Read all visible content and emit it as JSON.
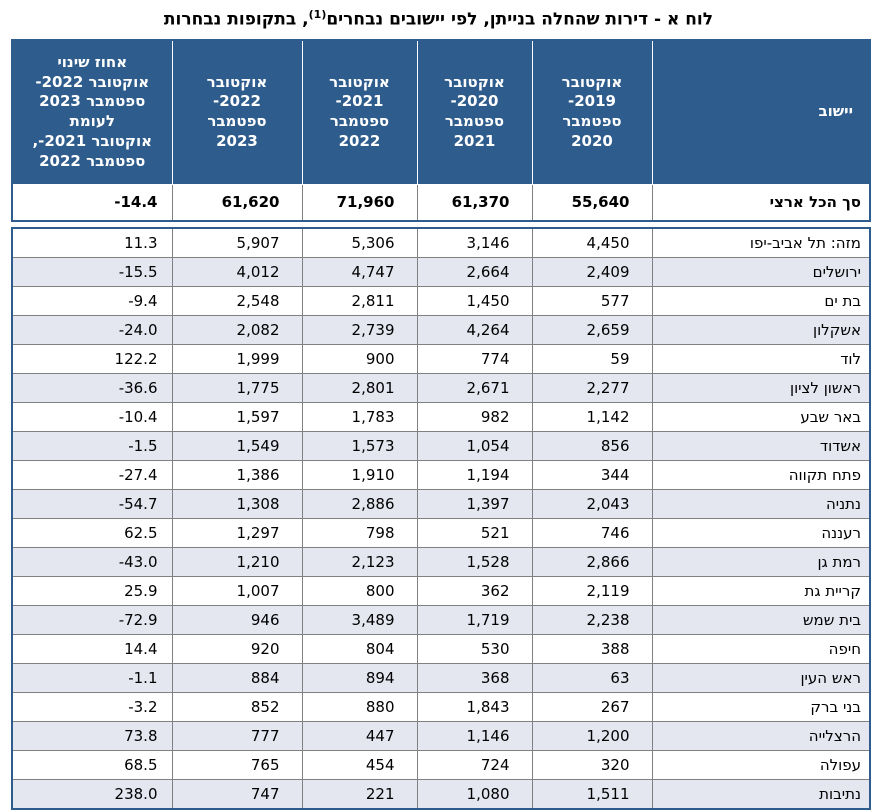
{
  "title": {
    "pre": "לוח א - דירות שהחלה בנייתן, לפי יישובים נבחרים",
    "sup": "(1)",
    "post": ", בתקופות נבחרות"
  },
  "table": {
    "headers": {
      "locality": "יישוב",
      "periods": [
        "אוקטובר\n2019-\nספטמבר\n2020",
        "אוקטובר\n2020-\nספטמבר\n2021",
        "אוקטובר\n2021-\nספטמבר\n2022",
        "אוקטובר\n2022-\nספטמבר\n2023"
      ],
      "change": "אחוז שינוי\nאוקטובר 2022-\nספטמבר 2023\nלעומת\nאוקטובר 2021-,\nספטמבר 2022"
    },
    "total": {
      "name": "סך הכל ארצי",
      "values": [
        "55,640",
        "61,370",
        "71,960",
        "61,620"
      ],
      "change": "-14.4"
    },
    "rows": [
      {
        "name": "מזה: תל אביב-יפו",
        "values": [
          "4,450",
          "3,146",
          "5,306",
          "5,907"
        ],
        "change": "11.3"
      },
      {
        "name": "ירושלים",
        "values": [
          "2,409",
          "2,664",
          "4,747",
          "4,012"
        ],
        "change": "-15.5"
      },
      {
        "name": "בת ים",
        "values": [
          "577",
          "1,450",
          "2,811",
          "2,548"
        ],
        "change": "-9.4"
      },
      {
        "name": "אשקלון",
        "values": [
          "2,659",
          "4,264",
          "2,739",
          "2,082"
        ],
        "change": "-24.0"
      },
      {
        "name": "לוד",
        "values": [
          "59",
          "774",
          "900",
          "1,999"
        ],
        "change": "122.2"
      },
      {
        "name": "ראשון לציון",
        "values": [
          "2,277",
          "2,671",
          "2,801",
          "1,775"
        ],
        "change": "-36.6"
      },
      {
        "name": "באר שבע",
        "values": [
          "1,142",
          "982",
          "1,783",
          "1,597"
        ],
        "change": "-10.4"
      },
      {
        "name": "אשדוד",
        "values": [
          "856",
          "1,054",
          "1,573",
          "1,549"
        ],
        "change": "-1.5"
      },
      {
        "name": "פתח תקווה",
        "values": [
          "344",
          "1,194",
          "1,910",
          "1,386"
        ],
        "change": "-27.4"
      },
      {
        "name": "נתניה",
        "values": [
          "2,043",
          "1,397",
          "2,886",
          "1,308"
        ],
        "change": "-54.7"
      },
      {
        "name": "רעננה",
        "values": [
          "746",
          "521",
          "798",
          "1,297"
        ],
        "change": "62.5"
      },
      {
        "name": "רמת גן",
        "values": [
          "2,866",
          "1,528",
          "2,123",
          "1,210"
        ],
        "change": "-43.0"
      },
      {
        "name": "קריית גת",
        "values": [
          "2,119",
          "362",
          "800",
          "1,007"
        ],
        "change": "25.9"
      },
      {
        "name": "בית שמש",
        "values": [
          "2,238",
          "1,719",
          "3,489",
          "946"
        ],
        "change": "-72.9"
      },
      {
        "name": "חיפה",
        "values": [
          "388",
          "530",
          "804",
          "920"
        ],
        "change": "14.4"
      },
      {
        "name": "ראש העין",
        "values": [
          "63",
          "368",
          "894",
          "884"
        ],
        "change": "-1.1"
      },
      {
        "name": "בני ברק",
        "values": [
          "267",
          "1,843",
          "880",
          "852"
        ],
        "change": "-3.2"
      },
      {
        "name": "הרצלייה",
        "values": [
          "1,200",
          "1,146",
          "447",
          "777"
        ],
        "change": "73.8"
      },
      {
        "name": "עפולה",
        "values": [
          "320",
          "724",
          "454",
          "765"
        ],
        "change": "68.5"
      },
      {
        "name": "נתיבות",
        "values": [
          "1,511",
          "1,080",
          "221",
          "747"
        ],
        "change": "238.0"
      }
    ]
  },
  "colors": {
    "header_bg": "#2E5C8C",
    "header_text": "#FFFFFF",
    "stripe_bg": "#E4E6F0",
    "row_bg": "#FFFFFF",
    "grid_line": "#808080",
    "outer_border": "#2E5C8C",
    "title_text": "#000000"
  }
}
